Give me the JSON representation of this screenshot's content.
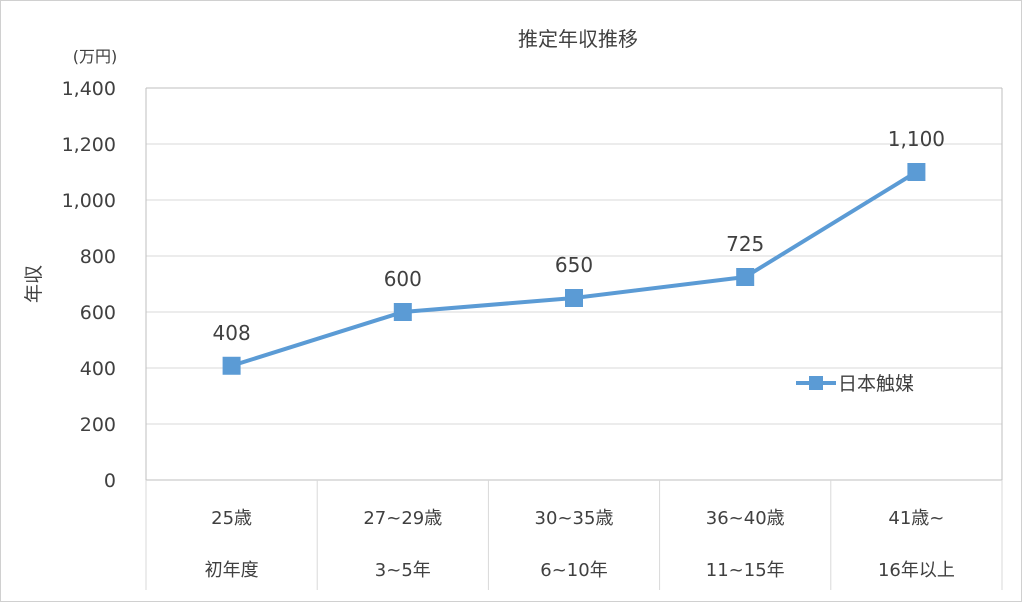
{
  "chart_data": {
    "type": "line",
    "title": "推定年収推移",
    "unit_label": "(万円)",
    "ylabel": "年収",
    "ylim": [
      0,
      1400
    ],
    "y_ticks": [
      0,
      200,
      400,
      600,
      800,
      1000,
      1200,
      1400
    ],
    "y_tick_labels": [
      "0",
      "200",
      "400",
      "600",
      "800",
      "1,000",
      "1,200",
      "1,400"
    ],
    "grid": true,
    "legend_position": "right",
    "categories": [
      {
        "line1": "25歳",
        "line2": "初年度"
      },
      {
        "line1": "27~29歳",
        "line2": "3~5年"
      },
      {
        "line1": "30~35歳",
        "line2": "6~10年"
      },
      {
        "line1": "36~40歳",
        "line2": "11~15年"
      },
      {
        "line1": "41歳~",
        "line2": "16年以上"
      }
    ],
    "series": [
      {
        "name": "日本触媒",
        "values": [
          408,
          600,
          650,
          725,
          1100
        ],
        "data_labels": [
          "408",
          "600",
          "650",
          "725",
          "1,100"
        ],
        "color": "#5b9bd5"
      }
    ]
  }
}
